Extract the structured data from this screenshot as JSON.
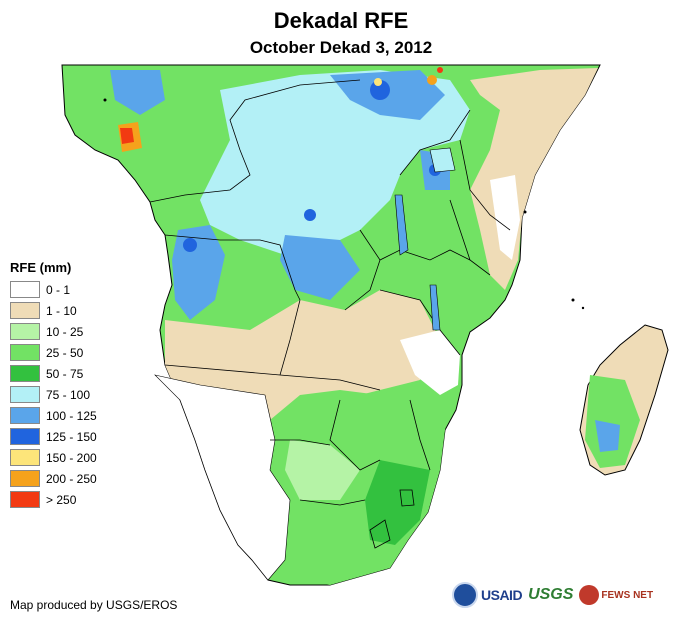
{
  "header": {
    "title": "Dekadal RFE",
    "subtitle": "October Dekad 3, 2012"
  },
  "legend": {
    "title": "RFE (mm)",
    "classes": [
      {
        "label": "0 - 1",
        "color": "#ffffff"
      },
      {
        "label": "1 - 10",
        "color": "#efdcb7"
      },
      {
        "label": "10 - 25",
        "color": "#b5f3a6"
      },
      {
        "label": "25 - 50",
        "color": "#72e264"
      },
      {
        "label": "50 - 75",
        "color": "#33c13f"
      },
      {
        "label": "75 - 100",
        "color": "#b3f0f6"
      },
      {
        "label": "100 - 125",
        "color": "#5aa5ea"
      },
      {
        "label": "125 - 150",
        "color": "#2064de"
      },
      {
        "label": "150 - 200",
        "color": "#fde57a"
      },
      {
        "label": "200 - 250",
        "color": "#f5a21c"
      },
      {
        "label": "> 250",
        "color": "#f23a12"
      }
    ]
  },
  "footer": {
    "credit": "Map produced by USGS/EROS",
    "logos": {
      "usaid": "USAID",
      "usgs": "USGS",
      "fews": "FEWS NET"
    }
  },
  "colors": {
    "border": "#000000"
  }
}
